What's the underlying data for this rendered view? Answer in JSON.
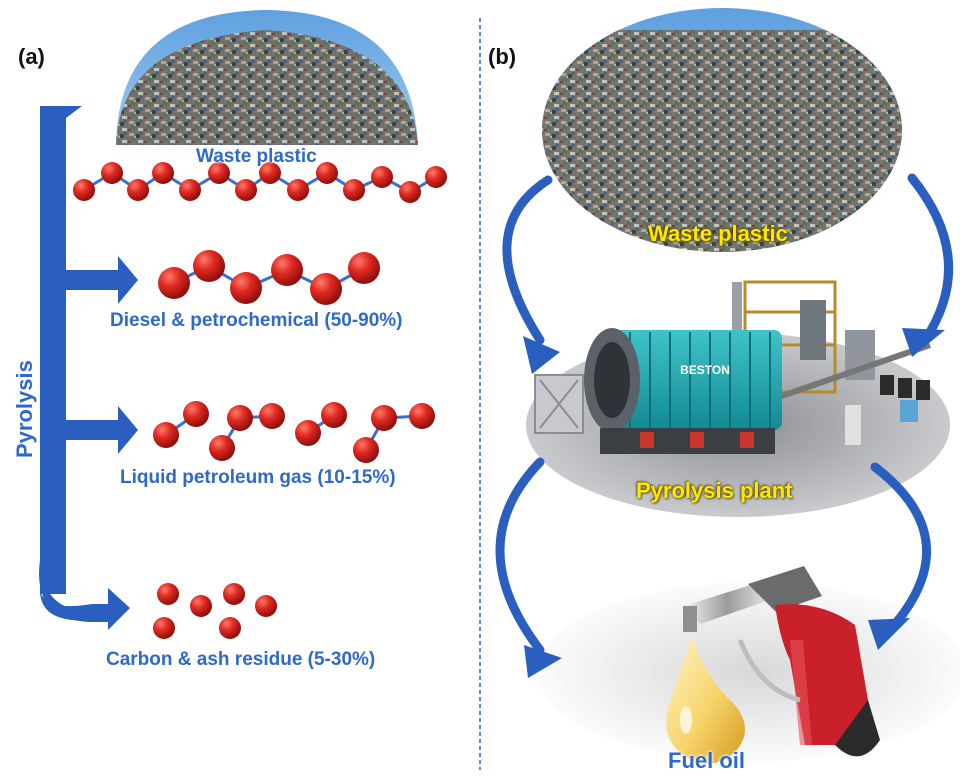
{
  "panels": {
    "a": {
      "label": "(a)",
      "process": "Pyrolysis",
      "input": "Waste plastic",
      "products": [
        {
          "label": "Diesel & petrochemical (50-90%)"
        },
        {
          "label": "Liquid petroleum gas (10-15%)"
        },
        {
          "label": "Carbon & ash residue (5-30%)"
        }
      ]
    },
    "b": {
      "label": "(b)",
      "input": "Waste plastic",
      "plant": "Pyrolysis plant",
      "output": "Fuel oil",
      "plant_brand": "BESTON"
    }
  },
  "colors": {
    "arrow_blue": "#2a5fc0",
    "label_blue": "#2f69c9",
    "molecule_red": "#d91f1f",
    "label_yellow": "#ffe800",
    "divider": "#3060c0"
  }
}
